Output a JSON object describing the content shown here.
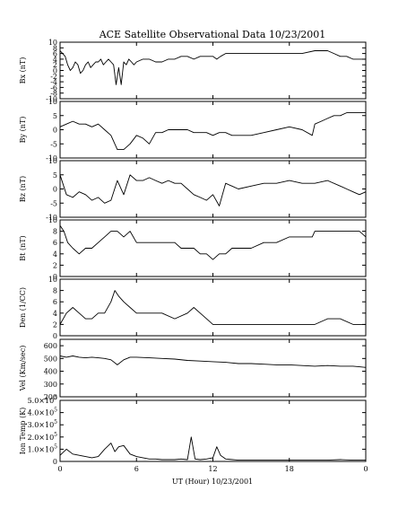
{
  "chart_data": {
    "type": "line",
    "title": "ACE Satellite Observational Data   10/23/2001",
    "xlabel": "UT (Hour)   10/23/2001",
    "x_ticks": [
      "0",
      "6",
      "12",
      "18",
      "0"
    ],
    "xlim": [
      0,
      24
    ],
    "panels": [
      {
        "name": "bx",
        "ylabel": "Bx (nT)",
        "ylim": [
          -10,
          10
        ],
        "y_ticks": [
          -10,
          -8,
          -6,
          -4,
          -2,
          0,
          2,
          4,
          6,
          8,
          10
        ],
        "x": [
          0,
          0.2,
          0.4,
          0.6,
          0.8,
          1,
          1.2,
          1.4,
          1.6,
          1.8,
          2,
          2.2,
          2.4,
          2.6,
          2.8,
          3,
          3.2,
          3.4,
          3.6,
          3.8,
          4,
          4.2,
          4.4,
          4.6,
          4.8,
          5,
          5.2,
          5.4,
          5.6,
          5.8,
          6,
          6.5,
          7,
          7.5,
          8,
          8.5,
          9,
          9.5,
          10,
          10.5,
          11,
          11.5,
          12,
          12.3,
          12.6,
          13,
          13.5,
          14,
          15,
          16,
          17,
          18,
          19,
          20,
          20.5,
          21,
          21.5,
          22,
          22.5,
          23,
          23.5,
          24
        ],
        "values": [
          7,
          6,
          5,
          2,
          0,
          1,
          3,
          2,
          -1,
          0,
          2,
          3,
          1,
          2,
          3,
          3,
          4,
          2,
          3,
          4,
          3,
          2,
          -5,
          1,
          -5,
          3,
          2,
          4,
          3,
          2,
          3,
          4,
          4,
          3,
          3,
          4,
          4,
          5,
          5,
          4,
          5,
          5,
          5,
          4,
          5,
          6,
          6,
          6,
          6,
          6,
          6,
          6,
          6,
          7,
          7,
          7,
          6,
          5,
          5,
          4,
          4,
          4
        ]
      },
      {
        "name": "by",
        "ylabel": "By (nT)",
        "ylim": [
          -10,
          10
        ],
        "y_ticks": [
          -10,
          -5,
          0,
          5,
          10
        ],
        "x": [
          0,
          0.5,
          1,
          1.5,
          2,
          2.5,
          3,
          3.5,
          4,
          4.5,
          5,
          5.5,
          6,
          6.5,
          7,
          7.5,
          8,
          8.5,
          9,
          9.5,
          10,
          10.5,
          11,
          11.5,
          12,
          12.5,
          13,
          13.5,
          14,
          15,
          16,
          17,
          18,
          19,
          19.8,
          20,
          20.5,
          21,
          21.5,
          22,
          22.5,
          23,
          23.5,
          24
        ],
        "values": [
          1,
          2,
          3,
          2,
          2,
          1,
          2,
          0,
          -2,
          -7,
          -7,
          -5,
          -2,
          -3,
          -5,
          -1,
          -1,
          0,
          0,
          0,
          0,
          -1,
          -1,
          -1,
          -2,
          -1,
          -1,
          -2,
          -2,
          -2,
          -1,
          0,
          1,
          0,
          -2,
          2,
          3,
          4,
          5,
          5,
          6,
          6,
          6,
          6
        ]
      },
      {
        "name": "bz",
        "ylabel": "Bz (nT)",
        "ylim": [
          -10,
          10
        ],
        "y_ticks": [
          -10,
          -5,
          0,
          5,
          10
        ],
        "x": [
          0,
          0.5,
          1,
          1.5,
          2,
          2.5,
          3,
          3.5,
          4,
          4.5,
          5,
          5.5,
          6,
          6.5,
          7,
          7.5,
          8,
          8.5,
          9,
          9.5,
          10,
          10.5,
          11,
          11.5,
          12,
          12.5,
          13,
          13.5,
          14,
          15,
          16,
          17,
          18,
          19,
          20,
          21,
          22,
          22.5,
          23,
          23.5,
          24
        ],
        "values": [
          5,
          -2,
          -3,
          -1,
          -2,
          -4,
          -3,
          -5,
          -4,
          3,
          -2,
          5,
          3,
          3,
          4,
          3,
          2,
          3,
          2,
          2,
          0,
          -2,
          -3,
          -4,
          -2,
          -6,
          2,
          1,
          0,
          1,
          2,
          2,
          3,
          2,
          2,
          3,
          1,
          0,
          -1,
          -2,
          -1
        ]
      },
      {
        "name": "bt",
        "ylabel": "Bt (nT)",
        "ylim": [
          0,
          10
        ],
        "y_ticks": [
          0,
          2,
          4,
          6,
          8,
          10
        ],
        "x": [
          0,
          0.3,
          0.6,
          1,
          1.5,
          2,
          2.5,
          3,
          3.5,
          4,
          4.5,
          5,
          5.5,
          6,
          6.5,
          7,
          7.5,
          8,
          8.5,
          9,
          9.5,
          10,
          10.5,
          11,
          11.5,
          12,
          12.5,
          13,
          13.5,
          14,
          15,
          16,
          17,
          18,
          19,
          19.8,
          20,
          21,
          22,
          23,
          23.5,
          24
        ],
        "values": [
          9,
          8,
          6,
          5,
          4,
          5,
          5,
          6,
          7,
          8,
          8,
          7,
          8,
          6,
          6,
          6,
          6,
          6,
          6,
          6,
          5,
          5,
          5,
          4,
          4,
          3,
          4,
          4,
          5,
          5,
          5,
          6,
          6,
          7,
          7,
          7,
          8,
          8,
          8,
          8,
          8,
          7
        ]
      },
      {
        "name": "den",
        "ylabel": "Den (1/CC)",
        "ylim": [
          0,
          10
        ],
        "y_ticks": [
          0,
          2,
          4,
          6,
          8,
          10
        ],
        "x": [
          0,
          0.5,
          1,
          1.5,
          2,
          2.5,
          3,
          3.5,
          4,
          4.3,
          4.6,
          5,
          5.5,
          6,
          6.5,
          7,
          8,
          9,
          10,
          10.5,
          11,
          11.5,
          12,
          12.5,
          13,
          14,
          15,
          16,
          17,
          18,
          19,
          20,
          21,
          22,
          23,
          24
        ],
        "values": [
          2,
          4,
          5,
          4,
          3,
          3,
          4,
          4,
          6,
          8,
          7,
          6,
          5,
          4,
          4,
          4,
          4,
          3,
          4,
          5,
          4,
          3,
          2,
          2,
          2,
          2,
          2,
          2,
          2,
          2,
          2,
          2,
          3,
          3,
          2,
          2
        ]
      },
      {
        "name": "vel",
        "ylabel": "Vel (Km/sec)",
        "ylim": [
          200,
          650
        ],
        "y_ticks": [
          200,
          300,
          400,
          500,
          600
        ],
        "x": [
          0,
          0.5,
          1,
          1.5,
          2,
          2.5,
          3,
          3.5,
          4,
          4.5,
          5,
          5.5,
          6,
          7,
          8,
          9,
          10,
          11,
          12,
          13,
          14,
          15,
          16,
          17,
          18,
          19,
          20,
          21,
          22,
          23,
          23.5,
          24
        ],
        "values": [
          520,
          510,
          520,
          510,
          505,
          510,
          505,
          500,
          490,
          450,
          490,
          510,
          510,
          505,
          500,
          495,
          485,
          480,
          475,
          470,
          460,
          460,
          455,
          450,
          450,
          445,
          440,
          445,
          440,
          440,
          435,
          430
        ]
      },
      {
        "name": "temp",
        "ylabel": "Ion Temp (K)",
        "ylim": [
          0,
          500000
        ],
        "y_ticks": [
          0,
          100000,
          200000,
          300000,
          400000,
          500000
        ],
        "y_tick_labels": [
          {
            "mantissa": "0",
            "exp": ""
          },
          {
            "mantissa": "1.0×10",
            "exp": "5"
          },
          {
            "mantissa": "2.0×10",
            "exp": "5"
          },
          {
            "mantissa": "3.0×10",
            "exp": "5"
          },
          {
            "mantissa": "4.0×10",
            "exp": "5"
          },
          {
            "mantissa": "5.0×10",
            "exp": "5"
          }
        ],
        "x": [
          0,
          0.5,
          1,
          1.5,
          2,
          2.5,
          3,
          3.5,
          4,
          4.3,
          4.6,
          5,
          5.5,
          6,
          6.5,
          7,
          7.5,
          8,
          9,
          9.5,
          10,
          10.3,
          10.6,
          11,
          11.5,
          12,
          12.3,
          12.6,
          13,
          14,
          15,
          16,
          17,
          18,
          19,
          20,
          21,
          22,
          23,
          24
        ],
        "values": [
          50000,
          100000,
          60000,
          50000,
          40000,
          30000,
          40000,
          100000,
          150000,
          80000,
          120000,
          130000,
          60000,
          40000,
          30000,
          20000,
          20000,
          15000,
          15000,
          20000,
          15000,
          200000,
          20000,
          15000,
          20000,
          30000,
          120000,
          50000,
          20000,
          10000,
          10000,
          10000,
          10000,
          10000,
          10000,
          10000,
          10000,
          15000,
          10000,
          10000
        ]
      }
    ]
  }
}
